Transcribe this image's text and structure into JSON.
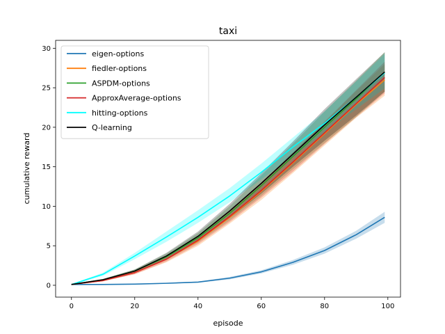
{
  "chart_data": {
    "type": "line",
    "title": "taxi",
    "xlabel": "episode",
    "ylabel": "cumulative reward",
    "xlim": [
      -5,
      104
    ],
    "ylim": [
      -1.5,
      31
    ],
    "xticks": [
      0,
      20,
      40,
      60,
      80,
      100
    ],
    "yticks": [
      0,
      5,
      10,
      15,
      20,
      25,
      30
    ],
    "grid": false,
    "legend_position": "top-left",
    "series": [
      {
        "name": "eigen-options",
        "color": "#1f77b4",
        "x": [
          0,
          10,
          20,
          30,
          40,
          50,
          60,
          70,
          80,
          90,
          99
        ],
        "y": [
          0.1,
          0.1,
          0.15,
          0.25,
          0.4,
          0.9,
          1.7,
          2.9,
          4.4,
          6.4,
          8.6
        ],
        "lower": [
          0.05,
          0.05,
          0.1,
          0.2,
          0.33,
          0.75,
          1.5,
          2.6,
          4.0,
          5.9,
          7.9
        ],
        "upper": [
          0.15,
          0.15,
          0.2,
          0.3,
          0.47,
          1.05,
          1.9,
          3.2,
          4.8,
          6.9,
          9.3
        ]
      },
      {
        "name": "fiedler-options",
        "color": "#ff7f0e",
        "x": [
          0,
          10,
          20,
          30,
          40,
          50,
          60,
          70,
          80,
          90,
          99
        ],
        "y": [
          0.1,
          0.6,
          1.6,
          3.3,
          5.6,
          8.6,
          11.9,
          15.5,
          19.2,
          22.9,
          26.0
        ],
        "lower": [
          0.05,
          0.5,
          1.4,
          2.9,
          5.0,
          7.8,
          10.8,
          14.2,
          17.7,
          21.2,
          24.0
        ],
        "upper": [
          0.15,
          0.7,
          1.8,
          3.7,
          6.2,
          9.4,
          13.0,
          16.8,
          20.7,
          24.6,
          28.0
        ]
      },
      {
        "name": "ASPDM-options",
        "color": "#2ca02c",
        "x": [
          0,
          10,
          20,
          30,
          40,
          50,
          60,
          70,
          80,
          90,
          99
        ],
        "y": [
          0.1,
          0.7,
          1.8,
          3.6,
          6.0,
          9.1,
          12.6,
          16.3,
          20.0,
          23.6,
          27.0
        ],
        "lower": [
          0.05,
          0.6,
          1.6,
          3.2,
          5.4,
          8.2,
          11.3,
          14.7,
          18.0,
          21.3,
          24.5
        ],
        "upper": [
          0.15,
          0.8,
          2.0,
          4.0,
          6.6,
          10.0,
          13.9,
          17.9,
          22.0,
          25.9,
          29.5
        ]
      },
      {
        "name": "ApproxAverage-options",
        "color": "#d62728",
        "x": [
          0,
          10,
          20,
          30,
          40,
          50,
          60,
          70,
          80,
          90,
          99
        ],
        "y": [
          0.1,
          0.6,
          1.6,
          3.3,
          5.7,
          8.7,
          12.0,
          15.6,
          19.3,
          23.0,
          26.3
        ],
        "lower": [
          0.05,
          0.5,
          1.4,
          3.0,
          5.2,
          8.0,
          11.1,
          14.4,
          17.9,
          21.3,
          24.3
        ],
        "upper": [
          0.15,
          0.7,
          1.8,
          3.6,
          6.2,
          9.4,
          12.9,
          16.8,
          20.7,
          24.7,
          28.3
        ]
      },
      {
        "name": "hitting-options",
        "color": "#00ffff",
        "x": [
          0,
          10,
          20,
          30,
          40,
          50,
          60,
          70,
          80,
          90,
          99
        ],
        "y": [
          0.1,
          1.4,
          3.7,
          6.1,
          8.6,
          11.3,
          14.3,
          17.5,
          20.5,
          23.8,
          26.9
        ],
        "lower": [
          0.05,
          1.2,
          3.3,
          5.5,
          7.9,
          10.5,
          13.4,
          16.3,
          19.3,
          22.3,
          24.9
        ],
        "upper": [
          0.15,
          1.6,
          4.1,
          6.8,
          9.5,
          12.3,
          15.4,
          18.7,
          22.0,
          25.8,
          29.3
        ]
      },
      {
        "name": "Q-learning",
        "color": "#000000",
        "x": [
          0,
          10,
          20,
          30,
          40,
          50,
          60,
          70,
          80,
          90,
          99
        ],
        "y": [
          0.1,
          0.7,
          1.8,
          3.7,
          6.2,
          9.4,
          12.9,
          16.6,
          20.3,
          23.8,
          27.0
        ],
        "lower": [
          0.05,
          0.6,
          1.6,
          3.3,
          5.6,
          8.5,
          11.6,
          15.0,
          18.3,
          21.5,
          24.5
        ],
        "upper": [
          0.15,
          0.8,
          2.0,
          4.1,
          6.8,
          10.3,
          14.2,
          18.2,
          22.3,
          26.1,
          29.5
        ]
      }
    ]
  }
}
